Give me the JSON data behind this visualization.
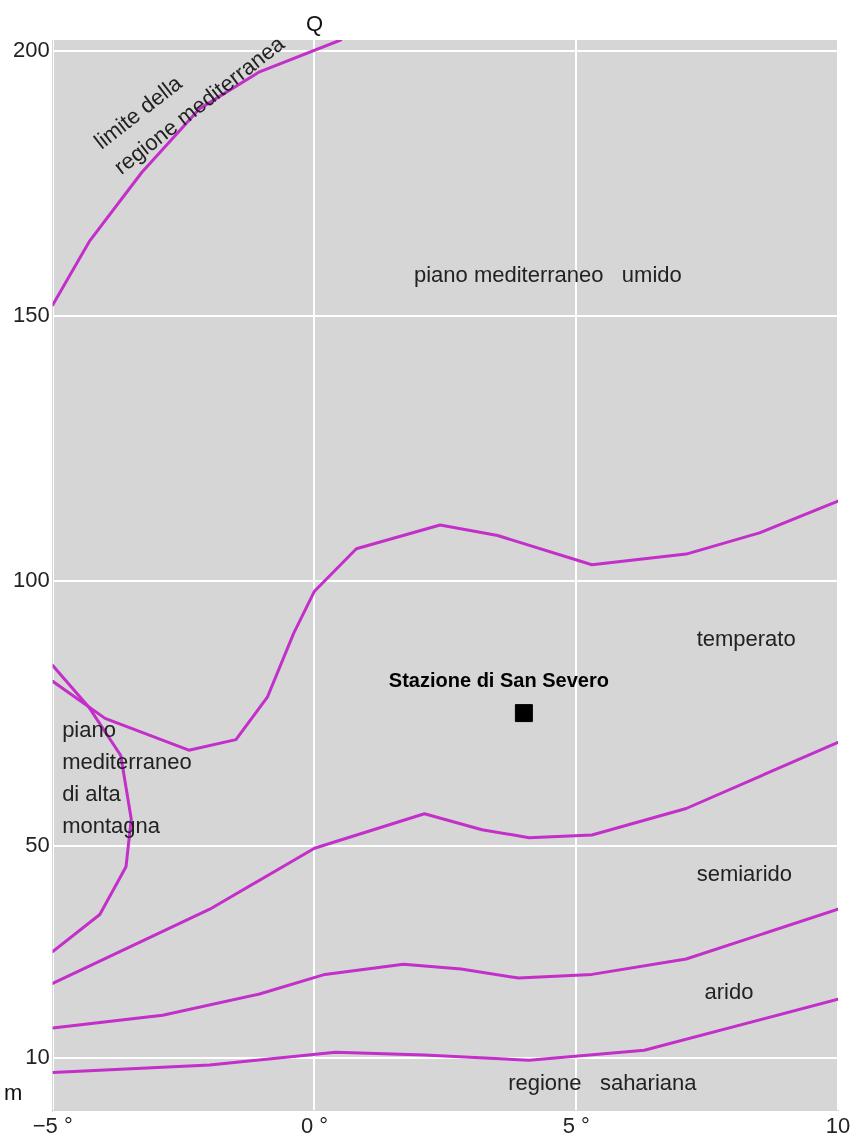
{
  "chart_data": {
    "type": "line",
    "xlabel": "m",
    "ylabel": "Q",
    "xlim": [
      -5,
      10
    ],
    "ylim": [
      0,
      202
    ],
    "xticks": [
      {
        "value": -5,
        "label": "−5 °"
      },
      {
        "value": 0,
        "label": "0 °"
      },
      {
        "value": 5,
        "label": "5 °"
      },
      {
        "value": 10,
        "label": "10"
      }
    ],
    "yticks": [
      10,
      50,
      100,
      150,
      200
    ],
    "grid": true,
    "legend": false,
    "line_style": "solid",
    "series": [
      {
        "color": "#c22fc9",
        "x": [
          -5,
          -4.3,
          -3.3,
          -2.2,
          -1.05,
          0.5
        ],
        "values": [
          152,
          164,
          177,
          189,
          196,
          202
        ]
      },
      {
        "color": "#c22fc9",
        "x": [
          -5,
          -4,
          -2.4,
          -1.5,
          -0.9,
          -0.4,
          0,
          0.8,
          2.4,
          3.5,
          5.3,
          7.1,
          8.5,
          10
        ],
        "values": [
          81,
          74,
          68,
          70,
          78,
          90,
          98,
          106,
          110.5,
          108.5,
          103,
          105,
          109,
          115
        ]
      },
      {
        "color": "#c22fc9",
        "x": [
          -5,
          -4.3,
          -3.7,
          -3.5,
          -3.6,
          -4.1,
          -5
        ],
        "values": [
          84,
          76,
          67,
          55,
          46,
          37,
          30
        ]
      },
      {
        "color": "#c22fc9",
        "x": [
          -5,
          -2,
          0,
          2.1,
          3.2,
          4.1,
          5.3,
          7.1,
          10
        ],
        "values": [
          24,
          38,
          49.5,
          56,
          53,
          51.5,
          52,
          57,
          69.5
        ]
      },
      {
        "color": "#c22fc9",
        "x": [
          -5,
          -2.9,
          -1.05,
          0.2,
          1.7,
          2.8,
          3.9,
          5.3,
          7.1,
          10
        ],
        "values": [
          15.6,
          18,
          22,
          25.7,
          27.6,
          26.7,
          25,
          25.7,
          28.6,
          38
        ]
      },
      {
        "color": "#c22fc9",
        "x": [
          -5,
          -2,
          0.4,
          2.1,
          4.1,
          6.3,
          10
        ],
        "values": [
          7.2,
          8.6,
          11,
          10.5,
          9.5,
          11.4,
          21
        ]
      },
      {
        "type": "scatter",
        "name": "Stazione di San Severo",
        "marker": "square",
        "color": "#000000",
        "x": [
          4
        ],
        "values": [
          75
        ]
      }
    ],
    "annotations": [
      "limite della\nregione mediterranea",
      "piano mediterraneo   umido",
      "temperato",
      "piano\nmediterraneo\ndi alta\nmontagna",
      "semiarido",
      "arido",
      "regione   sahariana"
    ]
  }
}
